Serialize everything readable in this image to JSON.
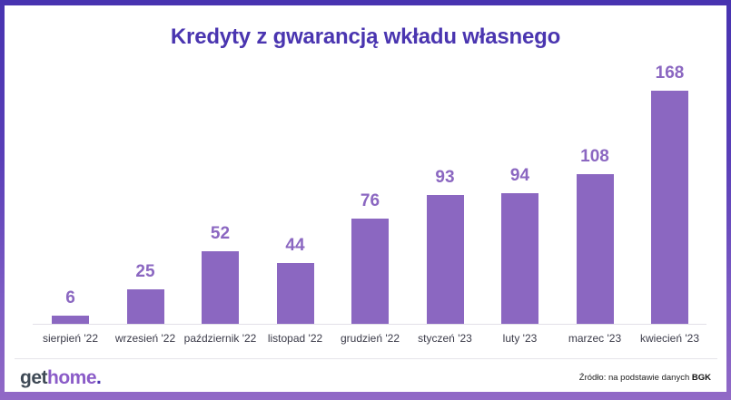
{
  "title": "Kredyty z gwarancją wkładu własnego",
  "colors": {
    "frame_top": "#4733b0",
    "frame_bottom": "#9169c6",
    "title": "#4a35b0",
    "bar": "#8b67c1",
    "logo_get": "#3f4a56",
    "logo_home": "#8b5cc8"
  },
  "chart_data": {
    "type": "bar",
    "title": "Kredyty z gwarancją wkładu własnego",
    "xlabel": "",
    "ylabel": "",
    "categories": [
      "sierpień '22",
      "wrzesień '22",
      "październik '22",
      "listopad '22",
      "grudzień '22",
      "styczeń '23",
      "luty '23",
      "marzec '23",
      "kwiecień '23"
    ],
    "values": [
      6,
      25,
      52,
      44,
      76,
      93,
      94,
      108,
      168
    ],
    "ylim": [
      0,
      168
    ],
    "grid": false,
    "legend": null,
    "data_labels": true
  },
  "footer": {
    "logo_get": "get",
    "logo_home": "home",
    "logo_dot": ".",
    "source_prefix": "Źródło: na podstawie danych ",
    "source_bold": "BGK"
  }
}
